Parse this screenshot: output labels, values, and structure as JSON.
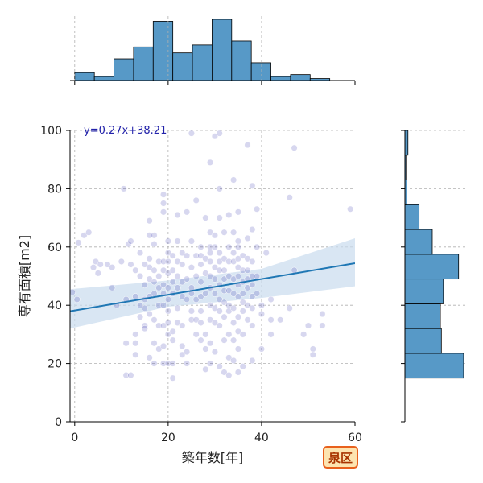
{
  "chart_data": {
    "type": "scatter",
    "xlabel": "築年数[年]",
    "ylabel": "専有面積[m2]",
    "xlim": [
      -1,
      60
    ],
    "ylim": [
      0,
      100
    ],
    "xticks": [
      "0",
      "20",
      "40",
      "60"
    ],
    "yticks": [
      "0",
      "20",
      "40",
      "60",
      "80",
      "100"
    ],
    "grid": true,
    "regression": {
      "label": "y=0.27x+38.21",
      "slope": 0.27,
      "intercept": 38.21,
      "line_color": "#1f77b4",
      "ci_upper": [
        [
          -1,
          45.5
        ],
        [
          20,
          48.5
        ],
        [
          40,
          52.5
        ],
        [
          60,
          63
        ]
      ],
      "ci_lower": [
        [
          -1,
          32
        ],
        [
          20,
          39.5
        ],
        [
          40,
          42.5
        ],
        [
          60,
          46.5
        ]
      ]
    },
    "points": [
      [
        -0.5,
        44.5
      ],
      [
        0.5,
        42
      ],
      [
        0.8,
        61.5
      ],
      [
        2,
        64
      ],
      [
        3,
        65
      ],
      [
        4,
        53
      ],
      [
        4.5,
        55
      ],
      [
        5,
        51
      ],
      [
        5.5,
        54
      ],
      [
        7,
        54
      ],
      [
        8,
        46
      ],
      [
        8,
        53
      ],
      [
        9,
        40
      ],
      [
        10,
        55
      ],
      [
        10.5,
        80
      ],
      [
        11,
        42
      ],
      [
        11,
        27
      ],
      [
        11,
        16
      ],
      [
        12,
        16
      ],
      [
        11.5,
        61
      ],
      [
        12,
        62
      ],
      [
        12,
        54
      ],
      [
        13,
        52
      ],
      [
        13,
        43
      ],
      [
        13,
        30
      ],
      [
        13,
        27
      ],
      [
        13,
        23
      ],
      [
        14,
        58
      ],
      [
        14,
        50
      ],
      [
        14,
        40
      ],
      [
        14,
        36
      ],
      [
        15,
        54
      ],
      [
        15,
        47
      ],
      [
        15,
        42
      ],
      [
        15,
        39
      ],
      [
        15,
        33
      ],
      [
        15,
        32
      ],
      [
        16,
        69
      ],
      [
        16,
        64
      ],
      [
        16,
        56
      ],
      [
        16,
        53
      ],
      [
        16,
        49
      ],
      [
        16,
        43
      ],
      [
        16,
        37
      ],
      [
        16,
        22
      ],
      [
        17,
        64
      ],
      [
        17,
        61
      ],
      [
        17,
        52
      ],
      [
        17,
        48
      ],
      [
        17,
        44
      ],
      [
        17,
        35
      ],
      [
        17,
        27
      ],
      [
        17,
        20
      ],
      [
        18,
        55
      ],
      [
        18,
        50
      ],
      [
        18,
        46
      ],
      [
        18,
        40
      ],
      [
        18,
        33
      ],
      [
        18,
        25
      ],
      [
        19,
        78
      ],
      [
        19,
        75
      ],
      [
        19,
        72
      ],
      [
        19,
        55
      ],
      [
        19,
        52
      ],
      [
        19,
        47
      ],
      [
        19,
        44
      ],
      [
        19,
        40
      ],
      [
        19,
        33
      ],
      [
        19,
        26
      ],
      [
        19,
        20
      ],
      [
        20,
        62
      ],
      [
        20,
        58
      ],
      [
        20,
        55
      ],
      [
        20,
        51
      ],
      [
        20,
        46
      ],
      [
        20,
        42
      ],
      [
        20,
        38
      ],
      [
        20,
        34
      ],
      [
        20,
        30
      ],
      [
        20,
        20
      ],
      [
        21,
        57
      ],
      [
        21,
        52
      ],
      [
        21,
        48
      ],
      [
        21,
        44
      ],
      [
        21,
        31
      ],
      [
        21,
        28
      ],
      [
        21,
        20
      ],
      [
        21,
        15
      ],
      [
        22,
        71
      ],
      [
        22,
        62
      ],
      [
        22,
        55
      ],
      [
        22,
        50
      ],
      [
        22,
        46
      ],
      [
        22,
        39
      ],
      [
        22,
        34
      ],
      [
        23,
        58
      ],
      [
        23,
        54
      ],
      [
        23,
        48
      ],
      [
        23,
        43
      ],
      [
        23,
        33
      ],
      [
        23,
        26
      ],
      [
        23,
        23
      ],
      [
        24,
        72
      ],
      [
        24,
        57
      ],
      [
        24,
        49
      ],
      [
        24,
        42
      ],
      [
        24,
        24
      ],
      [
        24,
        20
      ],
      [
        25,
        99
      ],
      [
        25,
        62
      ],
      [
        25,
        53
      ],
      [
        25,
        46
      ],
      [
        25,
        44
      ],
      [
        25,
        38
      ],
      [
        25,
        35
      ],
      [
        26,
        76
      ],
      [
        26,
        57
      ],
      [
        26,
        50
      ],
      [
        26,
        42
      ],
      [
        26,
        35
      ],
      [
        26,
        30
      ],
      [
        27,
        60
      ],
      [
        27,
        57
      ],
      [
        27,
        54
      ],
      [
        27,
        48
      ],
      [
        27,
        43
      ],
      [
        27,
        38
      ],
      [
        27,
        34
      ],
      [
        27,
        28
      ],
      [
        28,
        70
      ],
      [
        28,
        56
      ],
      [
        28,
        51
      ],
      [
        28,
        44
      ],
      [
        28,
        30
      ],
      [
        28,
        25
      ],
      [
        28,
        18
      ],
      [
        29,
        89
      ],
      [
        29,
        65
      ],
      [
        29,
        60
      ],
      [
        29,
        58
      ],
      [
        29,
        55
      ],
      [
        29,
        50
      ],
      [
        29,
        46
      ],
      [
        29,
        40
      ],
      [
        29,
        35
      ],
      [
        29,
        27
      ],
      [
        29,
        20
      ],
      [
        30,
        98
      ],
      [
        30,
        64
      ],
      [
        30,
        60
      ],
      [
        30,
        53
      ],
      [
        30,
        49
      ],
      [
        30,
        44
      ],
      [
        30,
        39
      ],
      [
        30,
        34
      ],
      [
        30,
        24
      ],
      [
        31,
        99
      ],
      [
        31,
        80
      ],
      [
        31,
        70
      ],
      [
        31,
        58
      ],
      [
        31,
        55
      ],
      [
        31,
        52
      ],
      [
        31,
        47
      ],
      [
        31,
        42
      ],
      [
        31,
        38
      ],
      [
        31,
        33
      ],
      [
        31,
        19
      ],
      [
        32,
        65
      ],
      [
        32,
        56
      ],
      [
        32,
        52
      ],
      [
        32,
        49
      ],
      [
        32,
        45
      ],
      [
        32,
        41
      ],
      [
        32,
        36
      ],
      [
        32,
        28
      ],
      [
        32,
        17
      ],
      [
        33,
        71
      ],
      [
        33,
        60
      ],
      [
        33,
        55
      ],
      [
        33,
        50
      ],
      [
        33,
        45
      ],
      [
        33,
        40
      ],
      [
        33,
        38
      ],
      [
        33,
        30
      ],
      [
        33,
        22
      ],
      [
        33,
        16
      ],
      [
        34,
        83
      ],
      [
        34,
        65
      ],
      [
        34,
        58
      ],
      [
        34,
        55
      ],
      [
        34,
        49
      ],
      [
        34,
        44
      ],
      [
        34,
        39
      ],
      [
        34,
        34
      ],
      [
        34,
        28
      ],
      [
        34,
        21
      ],
      [
        35,
        72
      ],
      [
        35,
        62
      ],
      [
        35,
        60
      ],
      [
        35,
        56
      ],
      [
        35,
        53
      ],
      [
        35,
        50
      ],
      [
        35,
        47
      ],
      [
        35,
        43
      ],
      [
        35,
        36
      ],
      [
        35,
        31
      ],
      [
        35,
        25
      ],
      [
        35,
        17
      ],
      [
        36,
        57
      ],
      [
        36,
        52
      ],
      [
        36,
        48
      ],
      [
        36,
        44
      ],
      [
        36,
        41
      ],
      [
        36,
        38
      ],
      [
        36,
        30
      ],
      [
        36,
        19
      ],
      [
        37,
        95
      ],
      [
        37,
        63
      ],
      [
        37,
        56
      ],
      [
        37,
        52
      ],
      [
        37,
        49
      ],
      [
        37,
        46
      ],
      [
        37,
        40
      ],
      [
        37,
        35
      ],
      [
        38,
        81
      ],
      [
        38,
        66
      ],
      [
        38,
        55
      ],
      [
        38,
        50
      ],
      [
        38,
        47
      ],
      [
        38,
        43
      ],
      [
        38,
        39
      ],
      [
        38,
        33
      ],
      [
        38,
        21
      ],
      [
        39,
        73
      ],
      [
        39,
        60
      ],
      [
        39,
        50
      ],
      [
        39,
        44
      ],
      [
        40,
        40
      ],
      [
        40,
        37
      ],
      [
        40,
        25
      ],
      [
        41,
        58
      ],
      [
        42,
        42
      ],
      [
        42,
        35
      ],
      [
        42,
        30
      ],
      [
        44,
        35
      ],
      [
        46,
        77
      ],
      [
        46,
        39
      ],
      [
        47,
        94
      ],
      [
        47,
        52
      ],
      [
        49,
        30
      ],
      [
        50,
        33
      ],
      [
        51,
        25
      ],
      [
        51,
        23
      ],
      [
        53,
        37
      ],
      [
        53,
        33
      ],
      [
        59,
        73
      ]
    ],
    "top_hist": {
      "bin_edges": [
        0,
        4.2,
        8.4,
        12.6,
        16.8,
        21,
        25.2,
        29.4,
        33.6,
        37.8,
        42,
        46.2,
        50.4,
        54.6,
        58.8
      ],
      "counts": [
        4,
        2,
        11,
        17,
        30,
        14,
        18,
        31,
        20,
        9,
        2,
        3,
        1,
        0
      ]
    },
    "right_hist": {
      "bin_edges": [
        15,
        23.5,
        32,
        40.5,
        49,
        57.5,
        66,
        74.5,
        83,
        91.5,
        100
      ],
      "counts": [
        58,
        36,
        35,
        38,
        53,
        27,
        14,
        2,
        1,
        3
      ]
    },
    "hist_fill": "#5799c7",
    "badge": {
      "text": "泉区"
    }
  }
}
